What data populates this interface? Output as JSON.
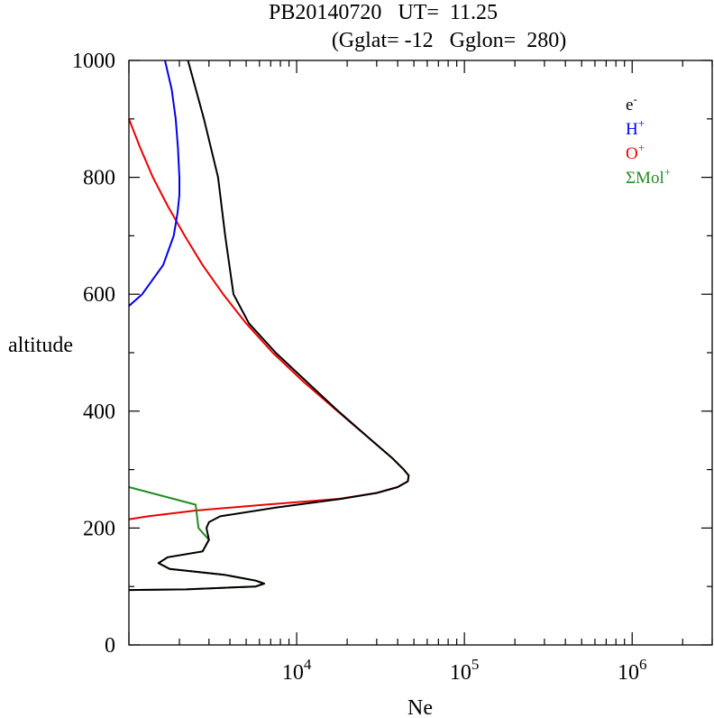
{
  "chart_data": {
    "type": "line",
    "title_line1": "PB20140720   UT=  11.25",
    "title_line2": "(Gglat= -12   Gglon=  280)",
    "xlabel": "Ne",
    "ylabel": "altitude",
    "x_scale": "log",
    "xlim": [
      1000,
      3000000
    ],
    "ylim": [
      0,
      1000
    ],
    "x_ticks": [
      {
        "mantissa": "10",
        "exp": "4",
        "value": 10000
      },
      {
        "mantissa": "10",
        "exp": "5",
        "value": 100000
      },
      {
        "mantissa": "10",
        "exp": "6",
        "value": 1000000
      }
    ],
    "y_ticks": [
      "0",
      "200",
      "400",
      "600",
      "800",
      "1000"
    ],
    "y_tick_values": [
      0,
      200,
      400,
      600,
      800,
      1000
    ],
    "grid": false,
    "legend_position": "top-right",
    "legend": [
      {
        "base": "e",
        "sup": "-",
        "color": "#000000"
      },
      {
        "base": "H",
        "sup": "+",
        "color": "#0000ee"
      },
      {
        "base": "O",
        "sup": "+",
        "color": "#ee0000"
      },
      {
        "base": "ΣMol",
        "sup": "+",
        "color": "#228b22"
      }
    ],
    "series": [
      {
        "color": "#ee0000",
        "points": [
          [
            900,
            1000
          ],
          [
            850,
            1170
          ],
          [
            800,
            1390
          ],
          [
            750,
            1710
          ],
          [
            700,
            2150
          ],
          [
            650,
            2750
          ],
          [
            600,
            3650
          ],
          [
            550,
            5000
          ],
          [
            500,
            7200
          ],
          [
            450,
            11000
          ],
          [
            400,
            17500
          ],
          [
            350,
            28000
          ],
          [
            320,
            37000
          ],
          [
            300,
            43500
          ],
          [
            290,
            46500
          ],
          [
            280,
            46000
          ],
          [
            270,
            40000
          ],
          [
            260,
            30000
          ],
          [
            250,
            18000
          ],
          [
            240,
            6500
          ],
          [
            230,
            2500
          ],
          [
            220,
            1300
          ],
          [
            215,
            1000
          ]
        ]
      },
      {
        "color": "#0000ee",
        "points": [
          [
            1000,
            1640
          ],
          [
            950,
            1800
          ],
          [
            900,
            1900
          ],
          [
            850,
            1960
          ],
          [
            800,
            2000
          ],
          [
            770,
            2000
          ],
          [
            740,
            1950
          ],
          [
            700,
            1850
          ],
          [
            650,
            1600
          ],
          [
            600,
            1200
          ],
          [
            580,
            1000
          ]
        ]
      },
      {
        "color": "#228b22",
        "points": [
          [
            270,
            1000
          ],
          [
            240,
            2500
          ],
          [
            200,
            2600
          ],
          [
            180,
            3000
          ],
          [
            160,
            2750
          ],
          [
            150,
            1700
          ],
          [
            140,
            1500
          ],
          [
            130,
            1750
          ],
          [
            120,
            3700
          ],
          [
            110,
            5700
          ],
          [
            105,
            6400
          ],
          [
            100,
            5700
          ],
          [
            95,
            2200
          ],
          [
            94,
            1000
          ]
        ]
      },
      {
        "color": "#000000",
        "points": [
          [
            1000,
            2250
          ],
          [
            900,
            2800
          ],
          [
            800,
            3400
          ],
          [
            700,
            3750
          ],
          [
            600,
            4200
          ],
          [
            550,
            5200
          ],
          [
            500,
            7500
          ],
          [
            450,
            11500
          ],
          [
            400,
            17700
          ],
          [
            350,
            28000
          ],
          [
            320,
            37000
          ],
          [
            300,
            43500
          ],
          [
            290,
            46500
          ],
          [
            280,
            46000
          ],
          [
            270,
            40000
          ],
          [
            260,
            30000
          ],
          [
            250,
            18500
          ],
          [
            235,
            7500
          ],
          [
            220,
            3500
          ],
          [
            210,
            3000
          ],
          [
            200,
            2900
          ],
          [
            180,
            3000
          ],
          [
            160,
            2750
          ],
          [
            150,
            1700
          ],
          [
            140,
            1500
          ],
          [
            130,
            1750
          ],
          [
            120,
            3700
          ],
          [
            110,
            5700
          ],
          [
            105,
            6400
          ],
          [
            100,
            5700
          ],
          [
            95,
            2200
          ],
          [
            94,
            1000
          ]
        ]
      }
    ]
  }
}
